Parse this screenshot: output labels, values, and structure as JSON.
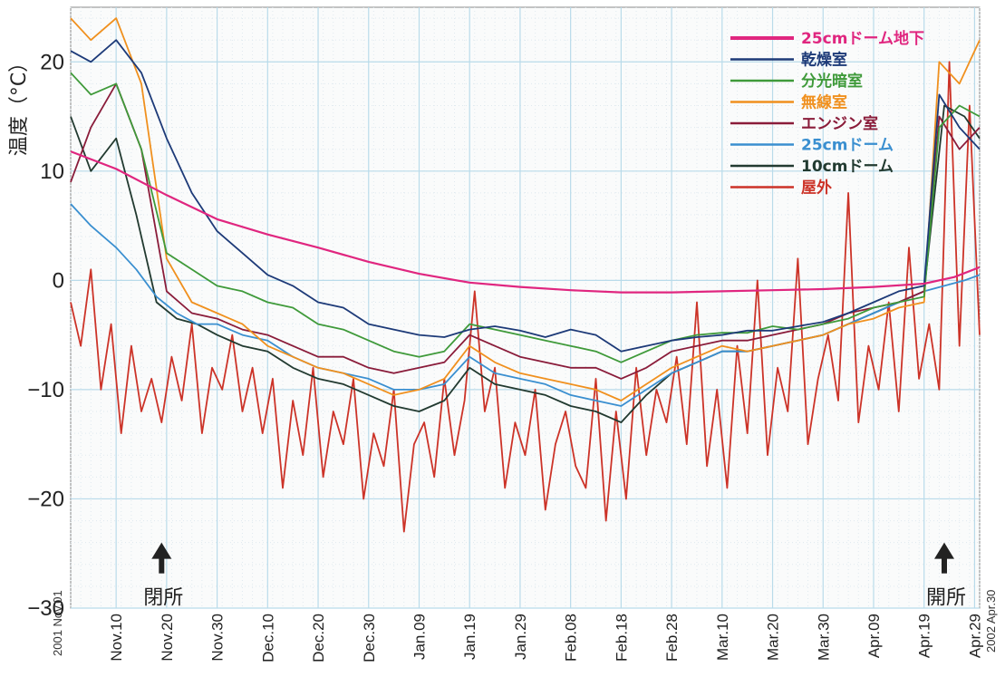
{
  "chart_data": {
    "type": "line",
    "ylabel": "温度（°C）",
    "ylim": [
      -30,
      25
    ],
    "yticks": [
      "20",
      "10",
      "0",
      "−10",
      "−20",
      "−30"
    ],
    "ytick_values": [
      20,
      10,
      0,
      -10,
      -20,
      -30
    ],
    "xlim": [
      "2001-11-01",
      "2002-04-30"
    ],
    "x_start_label": "2001 Nov.01",
    "x_end_label": "2002 Apr.30",
    "xticks": [
      "Nov.10",
      "Nov.20",
      "Nov.30",
      "Dec.10",
      "Dec.20",
      "Dec.30",
      "Jan.09",
      "Jan.19",
      "Jan.29",
      "Feb.08",
      "Feb.18",
      "Feb.28",
      "Mar.10",
      "Mar.20",
      "Mar.30",
      "Apr.09",
      "Apr.19",
      "Apr.29"
    ],
    "xtick_dates": [
      "2001-11-10",
      "2001-11-20",
      "2001-11-30",
      "2001-12-10",
      "2001-12-20",
      "2001-12-30",
      "2002-01-09",
      "2002-01-19",
      "2002-01-29",
      "2002-02-08",
      "2002-02-18",
      "2002-02-28",
      "2002-03-10",
      "2002-03-20",
      "2002-03-30",
      "2002-04-09",
      "2002-04-19",
      "2002-04-29"
    ],
    "grid": true,
    "legend_position": "top-right",
    "annotations": [
      {
        "text": "閉所",
        "date": "2001-11-19",
        "y": -24
      },
      {
        "text": "開所",
        "date": "2002-04-23",
        "y": -24
      }
    ],
    "series": [
      {
        "name": "25cmドーム地下",
        "color": "#e0267f",
        "x": [
          "2001-11-01",
          "2001-11-10",
          "2001-11-20",
          "2001-11-30",
          "2001-12-10",
          "2001-12-20",
          "2001-12-30",
          "2002-01-09",
          "2002-01-19",
          "2002-01-29",
          "2002-02-08",
          "2002-02-18",
          "2002-02-28",
          "2002-03-10",
          "2002-03-20",
          "2002-03-30",
          "2002-04-09",
          "2002-04-19",
          "2002-04-25",
          "2002-04-30"
        ],
        "y": [
          11.8,
          10.2,
          7.8,
          5.6,
          4.2,
          3.0,
          1.7,
          0.6,
          -0.2,
          -0.6,
          -0.9,
          -1.1,
          -1.1,
          -1.0,
          -0.9,
          -0.8,
          -0.6,
          -0.3,
          0.3,
          1.2
        ]
      },
      {
        "name": "乾燥室",
        "color": "#1d3a78",
        "x": [
          "2001-11-01",
          "2001-11-05",
          "2001-11-10",
          "2001-11-15",
          "2001-11-20",
          "2001-11-25",
          "2001-11-30",
          "2001-12-05",
          "2001-12-10",
          "2001-12-15",
          "2001-12-20",
          "2001-12-25",
          "2001-12-30",
          "2002-01-04",
          "2002-01-09",
          "2002-01-14",
          "2002-01-19",
          "2002-01-24",
          "2002-01-29",
          "2002-02-03",
          "2002-02-08",
          "2002-02-13",
          "2002-02-18",
          "2002-02-23",
          "2002-02-28",
          "2002-03-05",
          "2002-03-10",
          "2002-03-15",
          "2002-03-20",
          "2002-03-25",
          "2002-03-30",
          "2002-04-04",
          "2002-04-09",
          "2002-04-14",
          "2002-04-19",
          "2002-04-22",
          "2002-04-26",
          "2002-04-30"
        ],
        "y": [
          21,
          20,
          22,
          19,
          13,
          8,
          4.5,
          2.5,
          0.5,
          -0.5,
          -2,
          -2.5,
          -4,
          -4.5,
          -5,
          -5.2,
          -4.5,
          -4.2,
          -4.6,
          -5.2,
          -4.5,
          -5,
          -6.5,
          -6,
          -5.5,
          -5.2,
          -5,
          -4.6,
          -4.6,
          -4.2,
          -3.8,
          -3,
          -2,
          -1,
          -0.5,
          17,
          14,
          12
        ]
      },
      {
        "name": "分光暗室",
        "color": "#3f9a3a",
        "x": [
          "2001-11-01",
          "2001-11-05",
          "2001-11-10",
          "2001-11-15",
          "2001-11-20",
          "2001-11-25",
          "2001-11-30",
          "2001-12-05",
          "2001-12-10",
          "2001-12-15",
          "2001-12-20",
          "2001-12-25",
          "2001-12-30",
          "2002-01-04",
          "2002-01-09",
          "2002-01-14",
          "2002-01-19",
          "2002-01-24",
          "2002-01-29",
          "2002-02-03",
          "2002-02-08",
          "2002-02-13",
          "2002-02-18",
          "2002-02-23",
          "2002-02-28",
          "2002-03-05",
          "2002-03-10",
          "2002-03-15",
          "2002-03-20",
          "2002-03-25",
          "2002-03-30",
          "2002-04-04",
          "2002-04-09",
          "2002-04-14",
          "2002-04-19",
          "2002-04-22",
          "2002-04-26",
          "2002-04-30"
        ],
        "y": [
          19,
          17,
          18,
          12,
          2.5,
          1,
          -0.5,
          -1,
          -2,
          -2.5,
          -4,
          -4.5,
          -5.5,
          -6.5,
          -7,
          -6.5,
          -4,
          -4.5,
          -5,
          -5.5,
          -6,
          -6.5,
          -7.5,
          -6.5,
          -5.5,
          -5,
          -4.8,
          -4.8,
          -4.2,
          -4.5,
          -4,
          -3.5,
          -2.5,
          -2,
          -1.5,
          14,
          16,
          15
        ]
      },
      {
        "name": "無線室",
        "color": "#f0901e",
        "x": [
          "2001-11-01",
          "2001-11-05",
          "2001-11-10",
          "2001-11-15",
          "2001-11-20",
          "2001-11-25",
          "2001-11-30",
          "2001-12-05",
          "2001-12-10",
          "2001-12-15",
          "2001-12-20",
          "2001-12-25",
          "2001-12-30",
          "2002-01-04",
          "2002-01-09",
          "2002-01-14",
          "2002-01-19",
          "2002-01-24",
          "2002-01-29",
          "2002-02-03",
          "2002-02-08",
          "2002-02-13",
          "2002-02-18",
          "2002-02-23",
          "2002-02-28",
          "2002-03-05",
          "2002-03-10",
          "2002-03-15",
          "2002-03-20",
          "2002-03-25",
          "2002-03-30",
          "2002-04-04",
          "2002-04-09",
          "2002-04-14",
          "2002-04-19",
          "2002-04-22",
          "2002-04-26",
          "2002-04-30"
        ],
        "y": [
          24,
          22,
          24,
          18,
          2,
          -2,
          -3,
          -4,
          -6,
          -7,
          -8,
          -8.5,
          -9.5,
          -10.5,
          -10,
          -9,
          -6,
          -7.5,
          -8.5,
          -9,
          -9.5,
          -10,
          -11,
          -9.5,
          -8,
          -7,
          -6,
          -6.5,
          -6,
          -5.5,
          -5,
          -4,
          -3.5,
          -2.5,
          -2,
          20,
          18,
          22
        ]
      },
      {
        "name": "エンジン室",
        "color": "#8a1c3a",
        "x": [
          "2001-11-01",
          "2001-11-05",
          "2001-11-10",
          "2001-11-15",
          "2001-11-20",
          "2001-11-25",
          "2001-11-30",
          "2001-12-05",
          "2001-12-10",
          "2001-12-15",
          "2001-12-20",
          "2001-12-25",
          "2001-12-30",
          "2002-01-04",
          "2002-01-09",
          "2002-01-14",
          "2002-01-19",
          "2002-01-24",
          "2002-01-29",
          "2002-02-03",
          "2002-02-08",
          "2002-02-13",
          "2002-02-18",
          "2002-02-23",
          "2002-02-28",
          "2002-03-05",
          "2002-03-10",
          "2002-03-15",
          "2002-03-20",
          "2002-03-25",
          "2002-03-30",
          "2002-04-04",
          "2002-04-09",
          "2002-04-14",
          "2002-04-19",
          "2002-04-22",
          "2002-04-26",
          "2002-04-30"
        ],
        "y": [
          9,
          14,
          18,
          12,
          -1,
          -3,
          -3.5,
          -4.5,
          -5,
          -6,
          -7,
          -7,
          -8,
          -8.5,
          -8,
          -7.5,
          -5,
          -6,
          -7,
          -7.5,
          -8,
          -8,
          -9,
          -8,
          -6.5,
          -6,
          -5.5,
          -5.5,
          -5,
          -4.5,
          -4,
          -3,
          -2.5,
          -2,
          -1,
          15,
          12,
          14
        ]
      },
      {
        "name": "25cmドーム",
        "color": "#3a8fd0",
        "x": [
          "2001-11-01",
          "2001-11-05",
          "2001-11-10",
          "2001-11-14",
          "2001-11-18",
          "2001-11-22",
          "2001-11-26",
          "2001-11-30",
          "2001-12-05",
          "2001-12-10",
          "2001-12-15",
          "2001-12-20",
          "2001-12-25",
          "2001-12-30",
          "2002-01-04",
          "2002-01-09",
          "2002-01-14",
          "2002-01-19",
          "2002-01-24",
          "2002-01-29",
          "2002-02-03",
          "2002-02-08",
          "2002-02-13",
          "2002-02-18",
          "2002-02-23",
          "2002-02-28",
          "2002-03-05",
          "2002-03-10",
          "2002-03-15",
          "2002-03-20",
          "2002-03-25",
          "2002-03-30",
          "2002-04-04",
          "2002-04-09",
          "2002-04-14",
          "2002-04-19",
          "2002-04-23",
          "2002-04-27",
          "2002-04-30"
        ],
        "y": [
          7,
          5,
          3,
          1,
          -1.5,
          -3,
          -4,
          -4,
          -5,
          -5.5,
          -7,
          -8,
          -8.5,
          -9,
          -10,
          -10,
          -9.5,
          -7,
          -8.5,
          -9,
          -9.5,
          -10.5,
          -11,
          -11.5,
          -10,
          -8.5,
          -7.5,
          -6.5,
          -6.5,
          -6,
          -5.5,
          -5,
          -4,
          -3,
          -2,
          -1,
          -0.5,
          0,
          0.5
        ]
      },
      {
        "name": "10cmドーム",
        "color": "#223a30",
        "x": [
          "2001-11-01",
          "2001-11-05",
          "2001-11-10",
          "2001-11-14",
          "2001-11-18",
          "2001-11-22",
          "2001-11-26",
          "2001-11-30",
          "2001-12-05",
          "2001-12-10",
          "2001-12-15",
          "2001-12-20",
          "2001-12-25",
          "2001-12-30",
          "2002-01-04",
          "2002-01-09",
          "2002-01-14",
          "2002-01-19",
          "2002-01-24",
          "2002-01-29",
          "2002-02-03",
          "2002-02-08",
          "2002-02-13",
          "2002-02-18",
          "2002-02-23",
          "2002-02-28",
          "2002-03-05",
          "2002-03-10",
          "2002-03-15",
          "2002-03-20",
          "2002-03-25",
          "2002-03-30",
          "2002-04-04",
          "2002-04-09",
          "2002-04-14",
          "2002-04-19",
          "2002-04-23",
          "2002-04-27",
          "2002-04-30"
        ],
        "y": [
          15,
          10,
          13,
          6,
          -2,
          -3.5,
          -4,
          -5,
          -6,
          -6.5,
          -8,
          -9,
          -9.5,
          -10.5,
          -11.5,
          -12,
          -11,
          -8,
          -9.5,
          -10,
          -10.5,
          -11.5,
          -12,
          -13,
          -10.5,
          -8.5,
          -7.5,
          -6.5,
          -6.5,
          -6,
          -5.5,
          -5,
          -4,
          -3,
          -2,
          -1,
          16,
          15,
          13
        ]
      },
      {
        "name": "屋外",
        "color": "#cc3328",
        "x": [
          "2001-11-01",
          "2001-11-03",
          "2001-11-05",
          "2001-11-07",
          "2001-11-09",
          "2001-11-11",
          "2001-11-13",
          "2001-11-15",
          "2001-11-17",
          "2001-11-19",
          "2001-11-21",
          "2001-11-23",
          "2001-11-25",
          "2001-11-27",
          "2001-11-29",
          "2001-12-01",
          "2001-12-03",
          "2001-12-05",
          "2001-12-07",
          "2001-12-09",
          "2001-12-11",
          "2001-12-13",
          "2001-12-15",
          "2001-12-17",
          "2001-12-19",
          "2001-12-21",
          "2001-12-23",
          "2001-12-25",
          "2001-12-27",
          "2001-12-29",
          "2001-12-31",
          "2002-01-02",
          "2002-01-04",
          "2002-01-06",
          "2002-01-08",
          "2002-01-10",
          "2002-01-12",
          "2002-01-14",
          "2002-01-16",
          "2002-01-18",
          "2002-01-20",
          "2002-01-22",
          "2002-01-24",
          "2002-01-26",
          "2002-01-28",
          "2002-01-30",
          "2002-02-01",
          "2002-02-03",
          "2002-02-05",
          "2002-02-07",
          "2002-02-09",
          "2002-02-11",
          "2002-02-13",
          "2002-02-15",
          "2002-02-17",
          "2002-02-19",
          "2002-02-21",
          "2002-02-23",
          "2002-02-25",
          "2002-02-27",
          "2002-03-01",
          "2002-03-03",
          "2002-03-05",
          "2002-03-07",
          "2002-03-09",
          "2002-03-11",
          "2002-03-13",
          "2002-03-15",
          "2002-03-17",
          "2002-03-19",
          "2002-03-21",
          "2002-03-23",
          "2002-03-25",
          "2002-03-27",
          "2002-03-29",
          "2002-03-31",
          "2002-04-02",
          "2002-04-04",
          "2002-04-06",
          "2002-04-08",
          "2002-04-10",
          "2002-04-12",
          "2002-04-14",
          "2002-04-16",
          "2002-04-18",
          "2002-04-20",
          "2002-04-22",
          "2002-04-24",
          "2002-04-26",
          "2002-04-28",
          "2002-04-30"
        ],
        "y": [
          -2,
          -6,
          1,
          -10,
          -4,
          -14,
          -6,
          -12,
          -9,
          -13,
          -7,
          -11,
          -4,
          -14,
          -8,
          -10,
          -5,
          -12,
          -8,
          -14,
          -9,
          -19,
          -11,
          -16,
          -8,
          -18,
          -12,
          -15,
          -9,
          -20,
          -14,
          -17,
          -10,
          -23,
          -15,
          -13,
          -18,
          -9,
          -16,
          -11,
          -1,
          -12,
          -8,
          -19,
          -13,
          -16,
          -10,
          -21,
          -15,
          -12,
          -17,
          -19,
          -9,
          -22,
          -12,
          -20,
          -8,
          -16,
          -10,
          -13,
          -7,
          -15,
          -2,
          -17,
          -10,
          -19,
          -6,
          -14,
          0,
          -16,
          -8,
          -12,
          2,
          -15,
          -9,
          -5,
          -11,
          8,
          -13,
          -6,
          -10,
          -2,
          -12,
          3,
          -9,
          -4,
          -10,
          20,
          -6,
          16,
          -5
        ]
      }
    ]
  }
}
